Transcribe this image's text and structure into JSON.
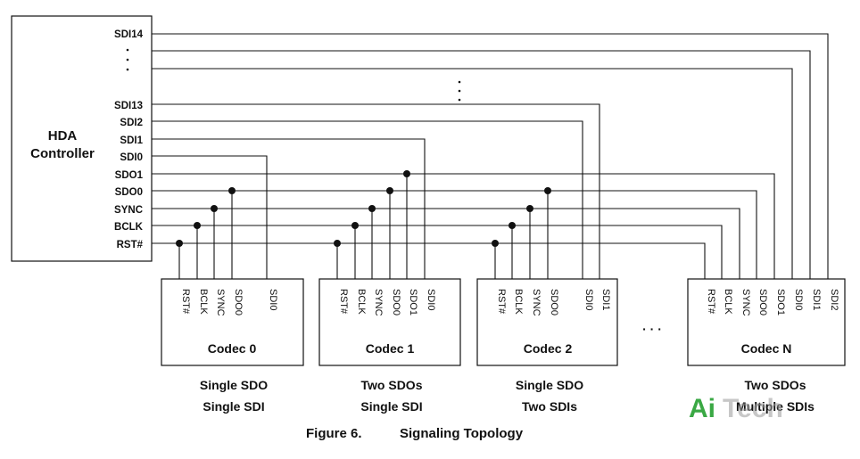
{
  "controller": {
    "title_line1": "HDA",
    "title_line2": "Controller",
    "pins": [
      {
        "id": "SDI14",
        "label": "SDI14"
      },
      {
        "id": "SDI13",
        "label": "SDI13"
      },
      {
        "id": "SDI2",
        "label": "SDI2"
      },
      {
        "id": "SDI1",
        "label": "SDI1"
      },
      {
        "id": "SDI0",
        "label": "SDI0"
      },
      {
        "id": "SDO1",
        "label": "SDO1"
      },
      {
        "id": "SDO0",
        "label": "SDO0"
      },
      {
        "id": "SYNC",
        "label": "SYNC"
      },
      {
        "id": "BCLK",
        "label": "BCLK"
      },
      {
        "id": "RST",
        "label": "RST#"
      }
    ]
  },
  "codecs": [
    {
      "title": "Codec 0",
      "pins": [
        "RST#",
        "BCLK",
        "SYNC",
        "SDO0",
        "SDI0"
      ],
      "caption_line1": "Single SDO",
      "caption_line2": "Single SDI"
    },
    {
      "title": "Codec 1",
      "pins": [
        "RST#",
        "BCLK",
        "SYNC",
        "SDO0",
        "SDO1",
        "SDI0"
      ],
      "caption_line1": "Two SDOs",
      "caption_line2": "Single SDI"
    },
    {
      "title": "Codec 2",
      "pins": [
        "RST#",
        "BCLK",
        "SYNC",
        "SDO0",
        "SDI0",
        "SDI1"
      ],
      "caption_line1": "Single SDO",
      "caption_line2": "Two SDIs"
    },
    {
      "title": "Codec N",
      "pins": [
        "RST#",
        "BCLK",
        "SYNC",
        "SDO0",
        "SDO1",
        "SDI0",
        "SDI1",
        "SDI2"
      ],
      "caption_line1": "Two SDOs",
      "caption_line2": "Multiple SDIs"
    }
  ],
  "ellipsis": "· · ·",
  "figure": {
    "number": "Figure 6.",
    "title": "Signaling Topology"
  },
  "watermark": {
    "part1": "Ai",
    "part2": "Tech",
    "color": "#3aa844"
  }
}
